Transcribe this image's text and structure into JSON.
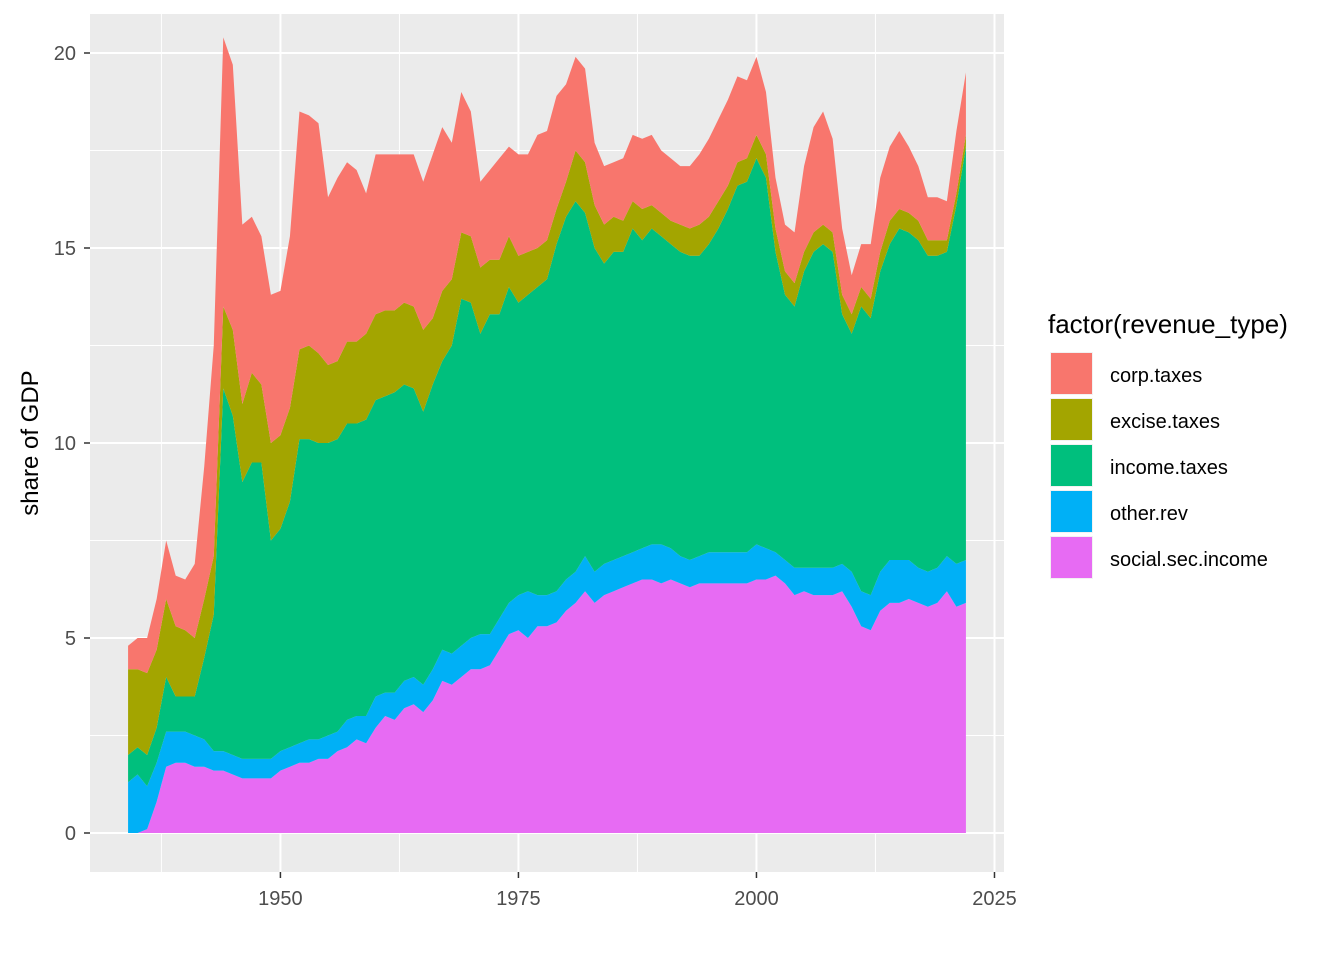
{
  "chart_data": {
    "type": "area",
    "stacked": true,
    "title": "",
    "xlabel": "",
    "ylabel": "share of GDP",
    "xlim": [
      1930,
      2026
    ],
    "ylim": [
      -1,
      21
    ],
    "x_ticks": [
      1950,
      1975,
      2000,
      2025
    ],
    "y_ticks": [
      0,
      5,
      10,
      15,
      20
    ],
    "grid": true,
    "legend": {
      "title": "factor(revenue_type)",
      "position": "right"
    },
    "years": [
      1934,
      1935,
      1936,
      1937,
      1938,
      1939,
      1940,
      1941,
      1942,
      1943,
      1944,
      1945,
      1946,
      1947,
      1948,
      1949,
      1950,
      1951,
      1952,
      1953,
      1954,
      1955,
      1956,
      1957,
      1958,
      1959,
      1960,
      1961,
      1962,
      1963,
      1964,
      1965,
      1966,
      1967,
      1968,
      1969,
      1970,
      1971,
      1972,
      1973,
      1974,
      1975,
      1976,
      1977,
      1978,
      1979,
      1980,
      1981,
      1982,
      1983,
      1984,
      1985,
      1986,
      1987,
      1988,
      1989,
      1990,
      1991,
      1992,
      1993,
      1994,
      1995,
      1996,
      1997,
      1998,
      1999,
      2000,
      2001,
      2002,
      2003,
      2004,
      2005,
      2006,
      2007,
      2008,
      2009,
      2010,
      2011,
      2012,
      2013,
      2014,
      2015,
      2016,
      2017,
      2018,
      2019,
      2020,
      2021,
      2022
    ],
    "series": [
      {
        "name": "social.sec.income",
        "color": "#E76BF3",
        "values": [
          0,
          0,
          0.1,
          0.8,
          1.7,
          1.8,
          1.8,
          1.7,
          1.7,
          1.6,
          1.6,
          1.5,
          1.4,
          1.4,
          1.4,
          1.4,
          1.6,
          1.7,
          1.8,
          1.8,
          1.9,
          1.9,
          2.1,
          2.2,
          2.4,
          2.3,
          2.7,
          3.0,
          2.9,
          3.2,
          3.3,
          3.1,
          3.4,
          3.9,
          3.8,
          4.0,
          4.2,
          4.2,
          4.3,
          4.7,
          5.1,
          5.2,
          5.0,
          5.3,
          5.3,
          5.4,
          5.7,
          5.9,
          6.2,
          5.9,
          6.1,
          6.2,
          6.3,
          6.4,
          6.5,
          6.5,
          6.4,
          6.5,
          6.4,
          6.3,
          6.4,
          6.4,
          6.4,
          6.4,
          6.4,
          6.4,
          6.5,
          6.5,
          6.6,
          6.4,
          6.1,
          6.2,
          6.1,
          6.1,
          6.1,
          6.2,
          5.8,
          5.3,
          5.2,
          5.7,
          5.9,
          5.9,
          6.0,
          5.9,
          5.8,
          5.9,
          6.2,
          5.8,
          5.9
        ]
      },
      {
        "name": "other.rev",
        "color": "#00B0F6",
        "values": [
          1.3,
          1.5,
          1.1,
          1.0,
          0.9,
          0.8,
          0.8,
          0.8,
          0.7,
          0.5,
          0.5,
          0.5,
          0.5,
          0.5,
          0.5,
          0.5,
          0.5,
          0.5,
          0.5,
          0.6,
          0.5,
          0.6,
          0.5,
          0.7,
          0.6,
          0.7,
          0.8,
          0.6,
          0.7,
          0.7,
          0.7,
          0.7,
          0.8,
          0.8,
          0.8,
          0.8,
          0.8,
          0.9,
          0.8,
          0.8,
          0.8,
          0.9,
          1.2,
          0.8,
          0.8,
          0.8,
          0.8,
          0.8,
          0.9,
          0.8,
          0.8,
          0.8,
          0.8,
          0.8,
          0.8,
          0.9,
          1.0,
          0.8,
          0.7,
          0.7,
          0.7,
          0.8,
          0.8,
          0.8,
          0.8,
          0.8,
          0.9,
          0.8,
          0.6,
          0.6,
          0.7,
          0.6,
          0.7,
          0.7,
          0.7,
          0.7,
          0.9,
          0.9,
          0.9,
          1.0,
          1.1,
          1.1,
          1.0,
          0.9,
          0.9,
          0.9,
          0.9,
          1.1,
          1.1
        ]
      },
      {
        "name": "income.taxes",
        "color": "#00BF7D",
        "values": [
          0.7,
          0.7,
          0.8,
          0.9,
          1.4,
          0.9,
          0.9,
          1.0,
          2.1,
          3.5,
          9.3,
          8.7,
          7.1,
          7.6,
          7.6,
          5.6,
          5.7,
          6.3,
          7.8,
          7.7,
          7.6,
          7.5,
          7.5,
          7.6,
          7.5,
          7.6,
          7.6,
          7.6,
          7.7,
          7.6,
          7.4,
          7.0,
          7.3,
          7.4,
          7.9,
          8.9,
          8.6,
          7.7,
          8.2,
          7.8,
          8.1,
          7.5,
          7.6,
          7.9,
          8.1,
          8.9,
          9.3,
          9.5,
          8.8,
          8.3,
          7.7,
          7.9,
          7.8,
          8.3,
          7.9,
          8.1,
          7.9,
          7.8,
          7.8,
          7.8,
          7.7,
          7.9,
          8.3,
          8.8,
          9.4,
          9.5,
          9.9,
          9.5,
          7.7,
          6.8,
          6.7,
          7.6,
          8.1,
          8.3,
          8.1,
          6.4,
          6.1,
          7.3,
          7.1,
          7.7,
          8.1,
          8.5,
          8.4,
          8.4,
          8.1,
          8.0,
          7.8,
          9.2,
          10.6
        ]
      },
      {
        "name": "excise.taxes",
        "color": "#A3A500",
        "values": [
          2.2,
          2.0,
          2.1,
          2.0,
          2.0,
          1.8,
          1.7,
          1.5,
          1.5,
          1.5,
          2.1,
          2.2,
          2.0,
          2.3,
          2.0,
          2.5,
          2.4,
          2.4,
          2.3,
          2.4,
          2.3,
          2.0,
          2.0,
          2.1,
          2.1,
          2.2,
          2.2,
          2.2,
          2.1,
          2.1,
          2.1,
          2.1,
          1.7,
          1.8,
          1.7,
          1.7,
          1.7,
          1.7,
          1.4,
          1.4,
          1.3,
          1.2,
          1.1,
          1.0,
          1.0,
          0.9,
          0.9,
          1.3,
          1.3,
          1.1,
          1.0,
          0.9,
          0.8,
          0.7,
          0.8,
          0.6,
          0.6,
          0.6,
          0.7,
          0.7,
          0.8,
          0.7,
          0.7,
          0.6,
          0.6,
          0.6,
          0.6,
          0.6,
          0.6,
          0.6,
          0.6,
          0.5,
          0.5,
          0.5,
          0.5,
          0.5,
          0.5,
          0.5,
          0.5,
          0.5,
          0.6,
          0.5,
          0.5,
          0.5,
          0.4,
          0.4,
          0.3,
          0.3,
          0.3
        ]
      },
      {
        "name": "corp.taxes",
        "color": "#F8766D",
        "values": [
          0.6,
          0.8,
          0.9,
          1.3,
          1.5,
          1.3,
          1.3,
          1.9,
          3.4,
          5.4,
          6.9,
          6.8,
          4.6,
          4.0,
          3.8,
          3.8,
          3.7,
          4.4,
          6.1,
          5.9,
          5.9,
          4.3,
          4.7,
          4.6,
          4.4,
          3.6,
          4.1,
          4.0,
          4.0,
          3.8,
          3.9,
          3.8,
          4.2,
          4.2,
          3.5,
          3.6,
          3.2,
          2.2,
          2.3,
          2.6,
          2.3,
          2.6,
          2.5,
          2.9,
          2.8,
          2.9,
          2.5,
          2.4,
          2.4,
          1.6,
          1.5,
          1.4,
          1.6,
          1.7,
          1.8,
          1.8,
          1.6,
          1.6,
          1.5,
          1.6,
          1.8,
          2.0,
          2.1,
          2.2,
          2.2,
          2.0,
          2.0,
          1.6,
          1.3,
          1.2,
          1.3,
          2.2,
          2.7,
          2.9,
          2.4,
          1.7,
          1.0,
          1.1,
          1.4,
          1.9,
          1.9,
          2.0,
          1.7,
          1.4,
          1.1,
          1.1,
          1.0,
          1.6,
          1.6
        ]
      }
    ],
    "legend_order": [
      "corp.taxes",
      "excise.taxes",
      "income.taxes",
      "other.rev",
      "social.sec.income"
    ]
  }
}
